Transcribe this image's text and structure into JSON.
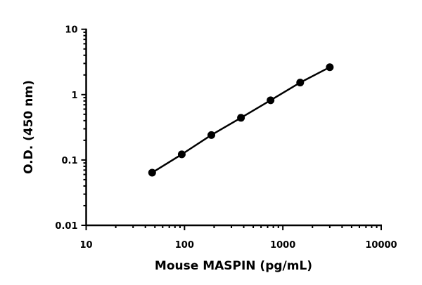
{
  "chart_data": {
    "type": "line",
    "title": "",
    "xlabel": "Mouse MASPIN (pg/mL)",
    "ylabel": "O.D. (450 nm)",
    "xscale": "log",
    "yscale": "log",
    "xlim": [
      10,
      10000
    ],
    "ylim": [
      0.01,
      10
    ],
    "xticks": [
      "10",
      "100",
      "1000",
      "10000"
    ],
    "yticks": [
      "0.01",
      "0.1",
      "1",
      "10"
    ],
    "grid": false,
    "legend": "none",
    "series": [
      {
        "x": [
          46.875,
          93.75,
          187.5,
          375,
          750,
          1500,
          3000
        ],
        "y": [
          0.064,
          0.122,
          0.241,
          0.442,
          0.82,
          1.53,
          2.63
        ],
        "color": "#000000",
        "marker": "circle"
      }
    ]
  }
}
